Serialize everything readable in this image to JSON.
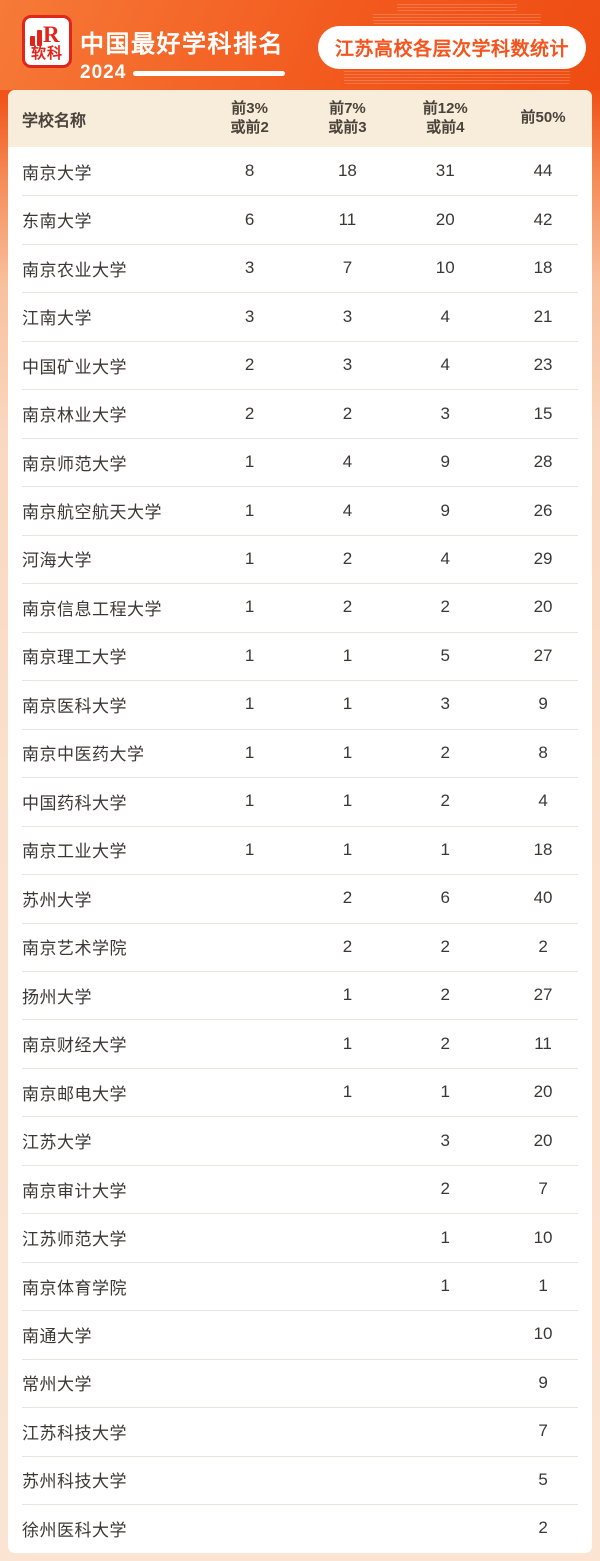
{
  "colors": {
    "accent_orange": "#f3561c",
    "logo_red": "#e1251b",
    "banner_gradient_start": "#f67a38",
    "banner_gradient_end": "#ee4c12",
    "header_band_bg": "#f8ecda",
    "body_text": "#3b3834",
    "divider": "#e8e5e1",
    "page_bottom_bg": "#fbe4d2"
  },
  "topbar": {
    "logo_text": "软科",
    "logo_mark_letter": "R",
    "brand_title": "中国最好学科排名",
    "year": "2024",
    "badge": "江苏高校各层次学科数统计"
  },
  "chart_data": {
    "type": "table",
    "title": "江苏高校各层次学科数统计",
    "source_label": "中国最好学科排名 2024",
    "columns": [
      "学校名称",
      "前3%\n或前2",
      "前7%\n或前3",
      "前12%\n或前4",
      "前50%"
    ],
    "rows": [
      {
        "name": "南京大学",
        "values": [
          "8",
          "18",
          "31",
          "44"
        ]
      },
      {
        "name": "东南大学",
        "values": [
          "6",
          "11",
          "20",
          "42"
        ]
      },
      {
        "name": "南京农业大学",
        "values": [
          "3",
          "7",
          "10",
          "18"
        ]
      },
      {
        "name": "江南大学",
        "values": [
          "3",
          "3",
          "4",
          "21"
        ]
      },
      {
        "name": "中国矿业大学",
        "values": [
          "2",
          "3",
          "4",
          "23"
        ]
      },
      {
        "name": "南京林业大学",
        "values": [
          "2",
          "2",
          "3",
          "15"
        ]
      },
      {
        "name": "南京师范大学",
        "values": [
          "1",
          "4",
          "9",
          "28"
        ]
      },
      {
        "name": "南京航空航天大学",
        "values": [
          "1",
          "4",
          "9",
          "26"
        ]
      },
      {
        "name": "河海大学",
        "values": [
          "1",
          "2",
          "4",
          "29"
        ]
      },
      {
        "name": "南京信息工程大学",
        "values": [
          "1",
          "2",
          "2",
          "20"
        ]
      },
      {
        "name": "南京理工大学",
        "values": [
          "1",
          "1",
          "5",
          "27"
        ]
      },
      {
        "name": "南京医科大学",
        "values": [
          "1",
          "1",
          "3",
          "9"
        ]
      },
      {
        "name": "南京中医药大学",
        "values": [
          "1",
          "1",
          "2",
          "8"
        ]
      },
      {
        "name": "中国药科大学",
        "values": [
          "1",
          "1",
          "2",
          "4"
        ]
      },
      {
        "name": "南京工业大学",
        "values": [
          "1",
          "1",
          "1",
          "18"
        ]
      },
      {
        "name": "苏州大学",
        "values": [
          "",
          "2",
          "6",
          "40"
        ]
      },
      {
        "name": "南京艺术学院",
        "values": [
          "",
          "2",
          "2",
          "2"
        ]
      },
      {
        "name": "扬州大学",
        "values": [
          "",
          "1",
          "2",
          "27"
        ]
      },
      {
        "name": "南京财经大学",
        "values": [
          "",
          "1",
          "2",
          "11"
        ]
      },
      {
        "name": "南京邮电大学",
        "values": [
          "",
          "1",
          "1",
          "20"
        ]
      },
      {
        "name": "江苏大学",
        "values": [
          "",
          "",
          "3",
          "20"
        ]
      },
      {
        "name": "南京审计大学",
        "values": [
          "",
          "",
          "2",
          "7"
        ]
      },
      {
        "name": "江苏师范大学",
        "values": [
          "",
          "",
          "1",
          "10"
        ]
      },
      {
        "name": "南京体育学院",
        "values": [
          "",
          "",
          "1",
          "1"
        ]
      },
      {
        "name": "南通大学",
        "values": [
          "",
          "",
          "",
          "10"
        ]
      },
      {
        "name": "常州大学",
        "values": [
          "",
          "",
          "",
          "9"
        ]
      },
      {
        "name": "江苏科技大学",
        "values": [
          "",
          "",
          "",
          "7"
        ]
      },
      {
        "name": "苏州科技大学",
        "values": [
          "",
          "",
          "",
          "5"
        ]
      },
      {
        "name": "徐州医科大学",
        "values": [
          "",
          "",
          "",
          "2"
        ]
      }
    ]
  }
}
